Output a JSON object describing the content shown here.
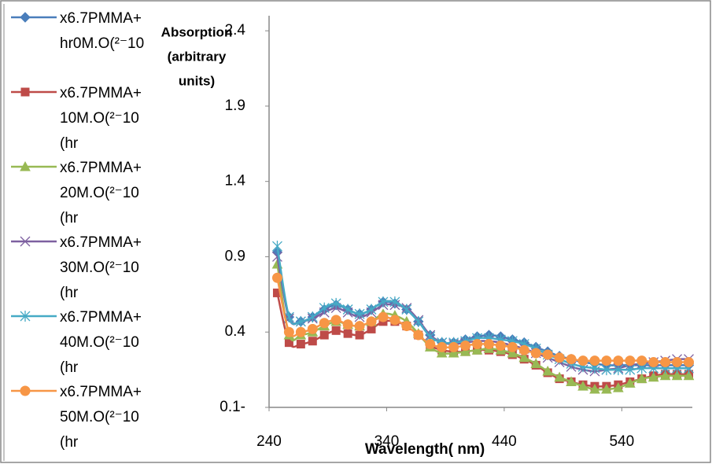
{
  "chart_data": {
    "type": "line",
    "y_label": [
      "Absorption",
      "(arbitrary",
      "units)"
    ],
    "x_label": "Wavelength( nm)",
    "x": [
      247,
      257,
      267,
      277,
      287,
      297,
      307,
      317,
      327,
      337,
      347,
      357,
      367,
      377,
      387,
      397,
      407,
      417,
      427,
      437,
      447,
      457,
      467,
      477,
      487,
      497,
      507,
      517,
      527,
      537,
      547,
      557,
      567,
      577,
      587,
      597
    ],
    "series": [
      {
        "name": "x6.7PMMA+\nhr0M.O(²⁻10",
        "color": "#4a7ebb",
        "marker": "diamond",
        "values": [
          0.93,
          0.5,
          0.47,
          0.5,
          0.55,
          0.58,
          0.55,
          0.52,
          0.55,
          0.6,
          0.59,
          0.55,
          0.47,
          0.38,
          0.33,
          0.33,
          0.35,
          0.37,
          0.38,
          0.37,
          0.35,
          0.33,
          0.3,
          0.27,
          0.24,
          0.22,
          0.2,
          0.19,
          0.18,
          0.18,
          0.18,
          0.18,
          0.18,
          0.18,
          0.18,
          0.18
        ]
      },
      {
        "name": "x6.7PMMA+\n10M.O(²⁻10\n(hr",
        "color": "#be4b48",
        "marker": "square",
        "values": [
          0.66,
          0.33,
          0.32,
          0.34,
          0.38,
          0.41,
          0.39,
          0.38,
          0.42,
          0.47,
          0.47,
          0.44,
          0.38,
          0.31,
          0.28,
          0.27,
          0.27,
          0.28,
          0.28,
          0.27,
          0.25,
          0.22,
          0.18,
          0.13,
          0.09,
          0.07,
          0.05,
          0.04,
          0.04,
          0.05,
          0.07,
          0.09,
          0.11,
          0.12,
          0.12,
          0.12
        ]
      },
      {
        "name": "x6.7PMMA+\n20M.O(²⁻10\n(hr",
        "color": "#98b954",
        "marker": "triangle",
        "values": [
          0.85,
          0.38,
          0.38,
          0.4,
          0.44,
          0.47,
          0.45,
          0.44,
          0.47,
          0.52,
          0.51,
          0.47,
          0.39,
          0.3,
          0.26,
          0.26,
          0.27,
          0.28,
          0.29,
          0.28,
          0.26,
          0.23,
          0.19,
          0.14,
          0.1,
          0.07,
          0.04,
          0.02,
          0.02,
          0.03,
          0.06,
          0.09,
          0.1,
          0.11,
          0.11,
          0.11
        ]
      },
      {
        "name": "x6.7PMMA+\n30M.O(²⁻10\n(hr",
        "color": "#7d60a0",
        "marker": "x",
        "values": [
          0.9,
          0.49,
          0.47,
          0.49,
          0.53,
          0.56,
          0.53,
          0.5,
          0.53,
          0.58,
          0.58,
          0.56,
          0.48,
          0.38,
          0.33,
          0.32,
          0.33,
          0.34,
          0.34,
          0.33,
          0.31,
          0.29,
          0.26,
          0.23,
          0.2,
          0.17,
          0.15,
          0.14,
          0.15,
          0.16,
          0.18,
          0.19,
          0.2,
          0.21,
          0.22,
          0.22
        ]
      },
      {
        "name": "x6.7PMMA+\n40M.O(²⁻10\n(hr",
        "color": "#46aac5",
        "marker": "star",
        "values": [
          0.97,
          0.5,
          0.47,
          0.5,
          0.56,
          0.59,
          0.55,
          0.52,
          0.55,
          0.6,
          0.6,
          0.55,
          0.47,
          0.37,
          0.33,
          0.33,
          0.34,
          0.36,
          0.36,
          0.35,
          0.34,
          0.32,
          0.29,
          0.25,
          0.22,
          0.19,
          0.17,
          0.16,
          0.15,
          0.15,
          0.15,
          0.16,
          0.16,
          0.16,
          0.16,
          0.16
        ]
      },
      {
        "name": "x6.7PMMA+\n50M.O(²⁻10\n(hr",
        "color": "#f79646",
        "marker": "circle",
        "values": [
          0.76,
          0.4,
          0.4,
          0.42,
          0.46,
          0.48,
          0.45,
          0.44,
          0.47,
          0.5,
          0.48,
          0.44,
          0.38,
          0.32,
          0.3,
          0.3,
          0.31,
          0.32,
          0.32,
          0.31,
          0.3,
          0.28,
          0.26,
          0.25,
          0.23,
          0.22,
          0.21,
          0.21,
          0.21,
          0.21,
          0.21,
          0.21,
          0.2,
          0.2,
          0.2,
          0.2
        ]
      }
    ],
    "xlim": [
      240,
      600
    ],
    "xticks": [
      240,
      340,
      440,
      540
    ],
    "ylim": [
      -0.1,
      2.5
    ],
    "yticks": [
      {
        "value": -0.1,
        "label": "0.1-"
      },
      0.4,
      0.9,
      1.4,
      1.9,
      2.4
    ],
    "grid": false
  }
}
